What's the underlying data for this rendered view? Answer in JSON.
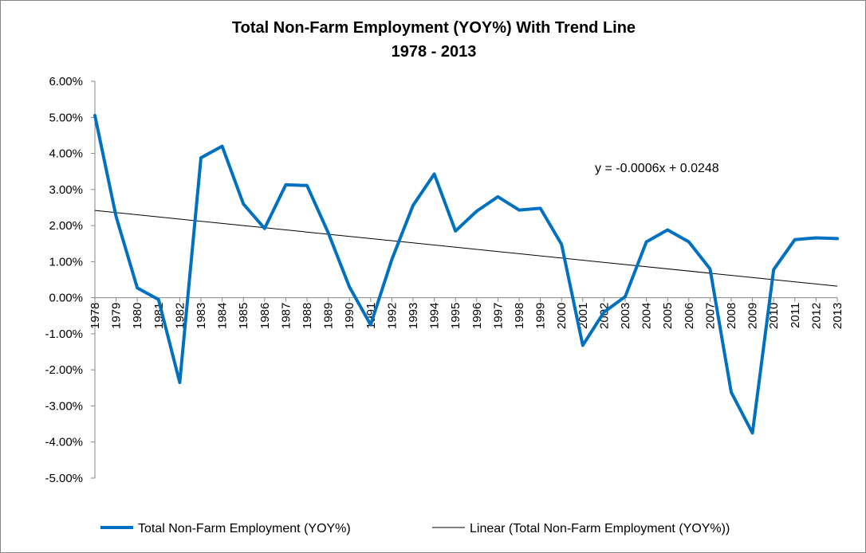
{
  "chart_data": {
    "type": "line",
    "title": "Total Non-Farm Employment (YOY%) With Trend Line",
    "subtitle": "1978 - 2013",
    "x": [
      "1978",
      "1979",
      "1980",
      "1981",
      "1982",
      "1983",
      "1984",
      "1985",
      "1986",
      "1987",
      "1988",
      "1989",
      "1990",
      "1991",
      "1992",
      "1993",
      "1994",
      "1995",
      "1996",
      "1997",
      "1998",
      "1999",
      "2000",
      "2001",
      "2002",
      "2003",
      "2004",
      "2005",
      "2006",
      "2007",
      "2008",
      "2009",
      "2010",
      "2011",
      "2012",
      "2013"
    ],
    "series": [
      {
        "name": "Total Non-Farm Employment (YOY%)",
        "color": "#0070C0",
        "values": [
          0.0505,
          0.0225,
          0.0027,
          -0.0005,
          -0.0235,
          0.0388,
          0.042,
          0.026,
          0.0192,
          0.0313,
          0.0311,
          0.018,
          0.003,
          -0.0075,
          0.0106,
          0.0256,
          0.0343,
          0.0185,
          0.024,
          0.028,
          0.0243,
          0.0248,
          0.0148,
          -0.0132,
          -0.004,
          0.0003,
          0.0155,
          0.0188,
          0.0155,
          0.008,
          -0.0262,
          -0.0375,
          0.0078,
          0.0161,
          0.0166,
          0.0164
        ]
      },
      {
        "name": "Linear (Total Non-Farm Employment (YOY%))",
        "color": "#000000",
        "type": "trendline",
        "slope": -0.0006,
        "intercept": 0.0248
      }
    ],
    "trend_equation": "y = -0.0006x + 0.0248",
    "yticks": [
      "6.00%",
      "5.00%",
      "4.00%",
      "3.00%",
      "2.00%",
      "1.00%",
      "0.00%",
      "-1.00%",
      "-2.00%",
      "-3.00%",
      "-4.00%",
      "-5.00%"
    ],
    "ylim": [
      -0.05,
      0.06
    ],
    "y_step": 0.01,
    "grid": false,
    "legend_position": "bottom"
  }
}
